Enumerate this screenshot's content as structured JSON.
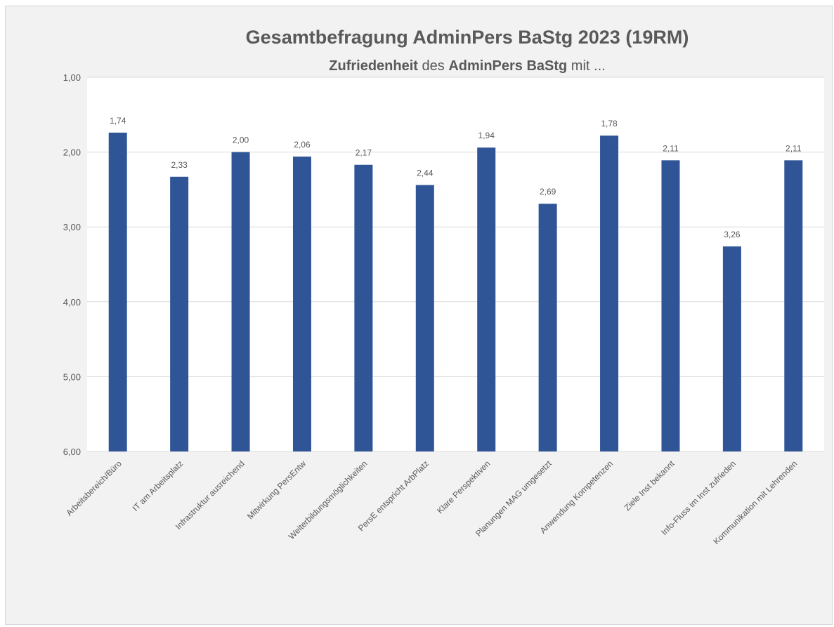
{
  "chart_data": {
    "type": "bar",
    "title": "Gesamtbefragung AdminPers BaStg 2023 (19RM)",
    "subtitle_parts": [
      {
        "text": "Zufriedenheit",
        "bold": true
      },
      {
        "text": " des ",
        "bold": false
      },
      {
        "text": "AdminPers BaStg",
        "bold": true
      },
      {
        "text": " mit ...",
        "bold": false
      }
    ],
    "categories": [
      "Arbeitsbereich/Büro",
      "IT am Arbeitsplatz",
      "Infrastruktur ausreichend",
      "Mitwirkung PersEntw",
      "Weiterbildungsmöglichkeiten",
      "PersE entspricht ArbPlatz",
      "Klare Perspektiven",
      "Planungen MAG umgesetzt",
      "Anwendung Kompetenzen",
      "Ziele Inst bekannt",
      "Info-Fluss im Inst zufrieden",
      "Kommunikation mit Lehrenden"
    ],
    "values": [
      1.74,
      2.33,
      2.0,
      2.06,
      2.17,
      2.44,
      1.94,
      2.69,
      1.78,
      2.11,
      3.26,
      2.11
    ],
    "value_labels": [
      "1,74",
      "2,33",
      "2,00",
      "2,06",
      "2,17",
      "2,44",
      "1,94",
      "2,69",
      "1,78",
      "2,11",
      "3,26",
      "2,11"
    ],
    "yticks": [
      1,
      2,
      3,
      4,
      5,
      6
    ],
    "ytick_labels": [
      "1,00",
      "2,00",
      "3,00",
      "4,00",
      "5,00",
      "6,00"
    ],
    "ylim": [
      1,
      6
    ],
    "y_inverted": true,
    "grid": true,
    "legend": "none",
    "xlabel": "",
    "ylabel": "",
    "bar_color": "#2f5597"
  }
}
